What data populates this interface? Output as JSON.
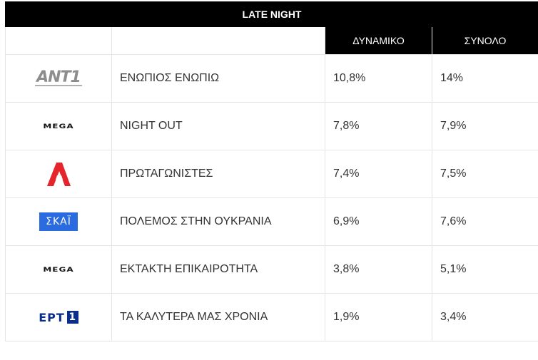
{
  "title": "LATE NIGHT",
  "columns": {
    "dynamic": "ΔΥΝΑΜΙΚΟ",
    "total": "ΣΥΝΟΛΟ"
  },
  "logos": {
    "ant1": "ΑΝΤ1",
    "mega": "ΜΕGA",
    "skai": "ΣΚΑΪ",
    "ert": "ΕΡΤ",
    "ert_num": "1"
  },
  "rows": [
    {
      "channel": "ant1-logo",
      "show": "ΕΝΩΠΙΟΣ ΕΝΩΠΙΩ",
      "dynamic": "10,8%",
      "total": "14%"
    },
    {
      "channel": "mega-logo",
      "show": "NIGHT OUT",
      "dynamic": "7,8%",
      "total": "7,9%"
    },
    {
      "channel": "alpha-logo",
      "show": "ΠΡΩΤΑΓΩΝΙΣΤΕΣ",
      "dynamic": "7,4%",
      "total": "7,5%"
    },
    {
      "channel": "skai-logo",
      "show": "ΠΟΛΕΜΟΣ ΣΤΗΝ ΟΥΚΡΑΝΙΑ",
      "dynamic": "6,9%",
      "total": "7,6%"
    },
    {
      "channel": "mega-logo",
      "show": "ΕΚΤΑΚΤΗ ΕΠΙΚΑΙΡΟΤΗΤΑ",
      "dynamic": "3,8%",
      "total": "5,1%"
    },
    {
      "channel": "ert1-logo",
      "show": "ΤΑ ΚΑΛΥΤΕΡΑ ΜΑΣ ΧΡΟΝΙΑ",
      "dynamic": "1,9%",
      "total": "3,4%"
    }
  ],
  "colors": {
    "header_bg": "#000000",
    "header_text": "#ffffff",
    "border": "#e5e5e5",
    "alpha_red": "#e4252b",
    "skai_blue": "#2a6be0",
    "ert_blue": "#0a2f8a"
  }
}
